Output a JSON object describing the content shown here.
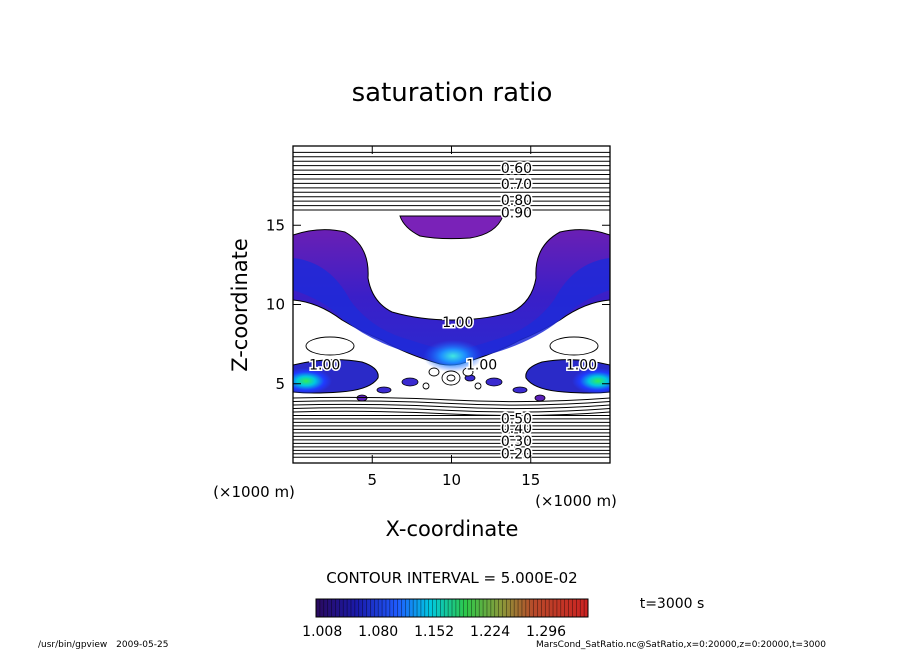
{
  "footer": {
    "program": "/usr/bin/gpview",
    "date": "2009-05-25",
    "source": "MarsCond_SatRatio.nc@SatRatio,x=0:20000,z=0:20000,t=3000"
  },
  "chart_data": {
    "type": "heatmap",
    "title": "saturation ratio",
    "xlabel": "X-coordinate",
    "ylabel": "Z-coordinate",
    "x_unit": "(×1000 m)",
    "y_unit": "(×1000 m)",
    "xlim": [
      0,
      20
    ],
    "ylim": [
      0,
      20
    ],
    "xticks": [
      5,
      10,
      15
    ],
    "yticks": [
      5,
      10,
      15
    ],
    "contour_interval_label": "CONTOUR INTERVAL = 5.000E-02",
    "time_label": "t=3000 s",
    "colorbar": {
      "min": 1.0,
      "max": 1.35,
      "tick_labels": [
        "1.008",
        "1.080",
        "1.152",
        "1.224",
        "1.296"
      ]
    },
    "contour_labels": [
      {
        "text": "0.60",
        "x": 14.1,
        "z": 18.6
      },
      {
        "text": "0.70",
        "x": 14.1,
        "z": 17.6
      },
      {
        "text": "0.80",
        "x": 14.1,
        "z": 16.6
      },
      {
        "text": "0.90",
        "x": 14.1,
        "z": 15.8
      },
      {
        "text": "1.00",
        "x": 10.4,
        "z": 8.9
      },
      {
        "text": "1.00",
        "x": 2.0,
        "z": 6.2
      },
      {
        "text": "1.00",
        "x": 18.2,
        "z": 6.2
      },
      {
        "text": "1.00",
        "x": 11.9,
        "z": 6.2
      },
      {
        "text": "0.20",
        "x": 14.1,
        "z": 0.6
      },
      {
        "text": "0.30",
        "x": 14.1,
        "z": 1.4
      },
      {
        "text": "0.40",
        "x": 14.1,
        "z": 2.2
      },
      {
        "text": "0.50",
        "x": 14.1,
        "z": 2.8
      }
    ],
    "grid": false,
    "legend": "colorbar-bottom"
  }
}
